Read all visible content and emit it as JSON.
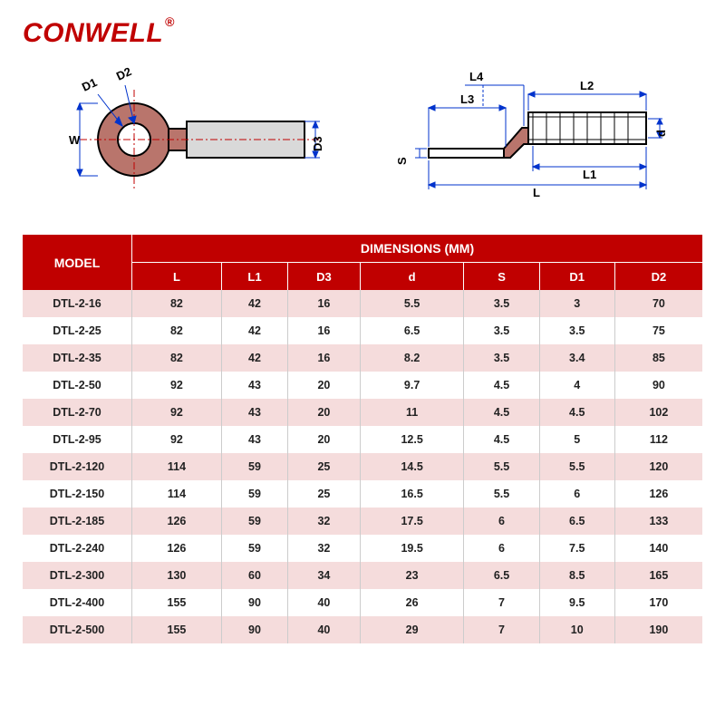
{
  "brand": {
    "name": "CONWELL",
    "mark": "®"
  },
  "diagram_labels": {
    "left": {
      "W": "W",
      "D1": "D1",
      "D2": "D2",
      "D3": "D3"
    },
    "right": {
      "L": "L",
      "L1": "L1",
      "L2": "L2",
      "L3": "L3",
      "L4": "L4",
      "S": "S",
      "d": "d"
    }
  },
  "colors": {
    "brand_red": "#c00000",
    "stripe_pink": "#f5dcdc",
    "stripe_white": "#ffffff",
    "diagram_outline": "#000000",
    "diagram_ring_fill": "#b9756c",
    "diagram_barrel_fill": "#d9d9d9",
    "diagram_dim_line": "#0033cc",
    "diagram_centerline": "#c00000"
  },
  "table": {
    "model_header": "MODEL",
    "dimensions_header": "DIMENSIONS (MM)",
    "columns": [
      "L",
      "L1",
      "D3",
      "d",
      "S",
      "D1",
      "D2"
    ],
    "rows": [
      {
        "model": "DTL-2-16",
        "vals": [
          "82",
          "42",
          "16",
          "5.5",
          "3.5",
          "3",
          "70"
        ]
      },
      {
        "model": "DTL-2-25",
        "vals": [
          "82",
          "42",
          "16",
          "6.5",
          "3.5",
          "3.5",
          "75"
        ]
      },
      {
        "model": "DTL-2-35",
        "vals": [
          "82",
          "42",
          "16",
          "8.2",
          "3.5",
          "3.4",
          "85"
        ]
      },
      {
        "model": "DTL-2-50",
        "vals": [
          "92",
          "43",
          "20",
          "9.7",
          "4.5",
          "4",
          "90"
        ]
      },
      {
        "model": "DTL-2-70",
        "vals": [
          "92",
          "43",
          "20",
          "11",
          "4.5",
          "4.5",
          "102"
        ]
      },
      {
        "model": "DTL-2-95",
        "vals": [
          "92",
          "43",
          "20",
          "12.5",
          "4.5",
          "5",
          "112"
        ]
      },
      {
        "model": "DTL-2-120",
        "vals": [
          "114",
          "59",
          "25",
          "14.5",
          "5.5",
          "5.5",
          "120"
        ]
      },
      {
        "model": "DTL-2-150",
        "vals": [
          "114",
          "59",
          "25",
          "16.5",
          "5.5",
          "6",
          "126"
        ]
      },
      {
        "model": "DTL-2-185",
        "vals": [
          "126",
          "59",
          "32",
          "17.5",
          "6",
          "6.5",
          "133"
        ]
      },
      {
        "model": "DTL-2-240",
        "vals": [
          "126",
          "59",
          "32",
          "19.5",
          "6",
          "7.5",
          "140"
        ]
      },
      {
        "model": "DTL-2-300",
        "vals": [
          "130",
          "60",
          "34",
          "23",
          "6.5",
          "8.5",
          "165"
        ]
      },
      {
        "model": "DTL-2-400",
        "vals": [
          "155",
          "90",
          "40",
          "26",
          "7",
          "9.5",
          "170"
        ]
      },
      {
        "model": "DTL-2-500",
        "vals": [
          "155",
          "90",
          "40",
          "29",
          "7",
          "10",
          "190"
        ]
      }
    ]
  }
}
